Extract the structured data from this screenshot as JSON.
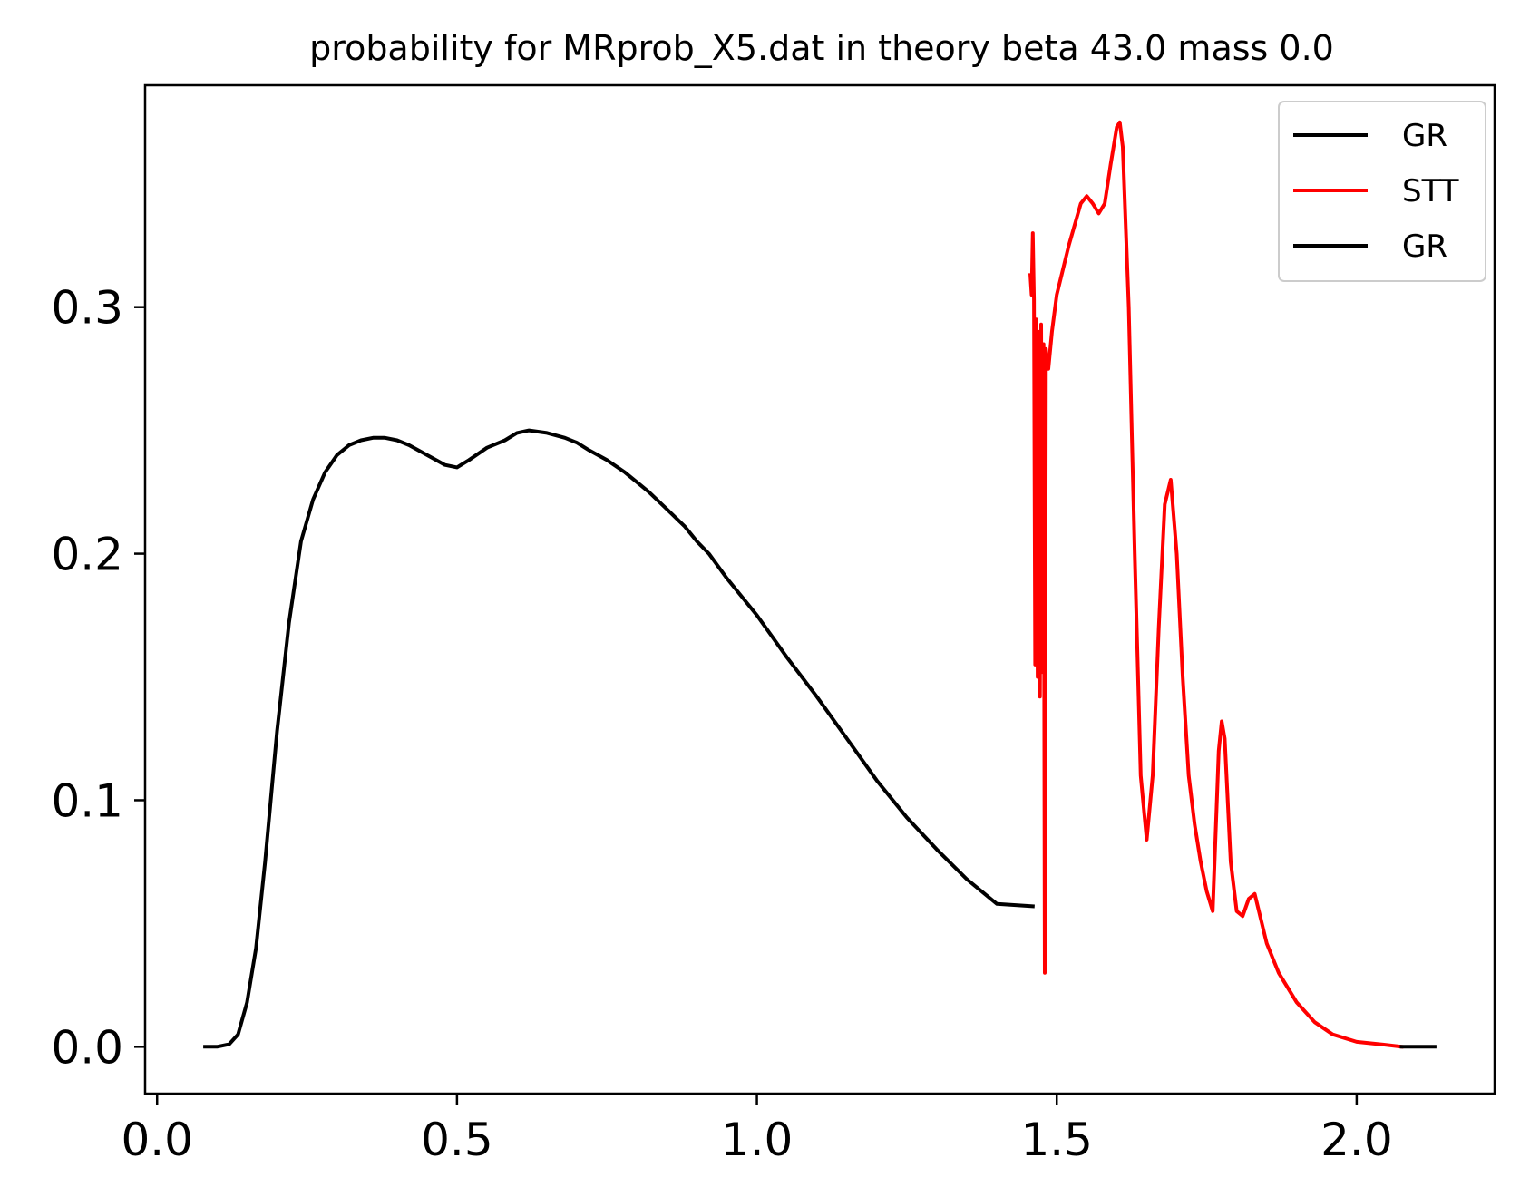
{
  "chart_data": {
    "type": "line",
    "title": "probability for MRprob_X5.dat in theory beta 43.0 mass 0.0",
    "xlabel": "",
    "ylabel": "",
    "xlim": [
      -0.02,
      2.23
    ],
    "ylim": [
      -0.019,
      0.39
    ],
    "xticks": [
      0.0,
      0.5,
      1.0,
      1.5,
      2.0
    ],
    "xtick_labels": [
      "0.0",
      "0.5",
      "1.0",
      "1.5",
      "2.0"
    ],
    "yticks": [
      0.0,
      0.1,
      0.2,
      0.3
    ],
    "ytick_labels": [
      "0.0",
      "0.1",
      "0.2",
      "0.3"
    ],
    "grid": false,
    "legend_position": "top-right",
    "series": [
      {
        "name": "GR",
        "color": "#000000",
        "x": [
          0.08,
          0.1,
          0.12,
          0.135,
          0.15,
          0.165,
          0.18,
          0.2,
          0.22,
          0.24,
          0.26,
          0.28,
          0.3,
          0.32,
          0.34,
          0.36,
          0.38,
          0.4,
          0.42,
          0.45,
          0.48,
          0.5,
          0.52,
          0.55,
          0.58,
          0.6,
          0.62,
          0.65,
          0.68,
          0.7,
          0.72,
          0.75,
          0.78,
          0.8,
          0.82,
          0.85,
          0.88,
          0.9,
          0.92,
          0.95,
          1.0,
          1.05,
          1.1,
          1.15,
          1.2,
          1.25,
          1.3,
          1.35,
          1.4,
          1.46
        ],
        "y": [
          0.0,
          0.0,
          0.001,
          0.005,
          0.018,
          0.04,
          0.075,
          0.128,
          0.172,
          0.205,
          0.222,
          0.233,
          0.24,
          0.244,
          0.246,
          0.247,
          0.247,
          0.246,
          0.244,
          0.24,
          0.236,
          0.235,
          0.238,
          0.243,
          0.246,
          0.249,
          0.25,
          0.249,
          0.247,
          0.245,
          0.242,
          0.238,
          0.233,
          0.229,
          0.225,
          0.218,
          0.211,
          0.205,
          0.2,
          0.19,
          0.175,
          0.158,
          0.142,
          0.125,
          0.108,
          0.093,
          0.08,
          0.068,
          0.058,
          0.057
        ]
      },
      {
        "name": "STT",
        "color": "#ff0000",
        "x": [
          1.456,
          1.458,
          1.46,
          1.462,
          1.464,
          1.466,
          1.468,
          1.47,
          1.472,
          1.474,
          1.476,
          1.478,
          1.48,
          1.482,
          1.484,
          1.486,
          1.488,
          1.49,
          1.492,
          1.5,
          1.52,
          1.54,
          1.55,
          1.56,
          1.57,
          1.58,
          1.59,
          1.6,
          1.605,
          1.61,
          1.62,
          1.63,
          1.64,
          1.65,
          1.66,
          1.67,
          1.68,
          1.69,
          1.7,
          1.71,
          1.72,
          1.73,
          1.74,
          1.75,
          1.76,
          1.77,
          1.775,
          1.78,
          1.79,
          1.8,
          1.81,
          1.82,
          1.83,
          1.84,
          1.85,
          1.87,
          1.9,
          1.93,
          1.96,
          2.0,
          2.04,
          2.075
        ],
        "y": [
          0.313,
          0.305,
          0.33,
          0.303,
          0.155,
          0.295,
          0.15,
          0.29,
          0.142,
          0.293,
          0.152,
          0.285,
          0.03,
          0.283,
          0.275,
          0.275,
          0.28,
          0.285,
          0.29,
          0.305,
          0.325,
          0.342,
          0.345,
          0.342,
          0.338,
          0.342,
          0.358,
          0.373,
          0.375,
          0.365,
          0.3,
          0.2,
          0.11,
          0.084,
          0.11,
          0.17,
          0.22,
          0.23,
          0.2,
          0.15,
          0.11,
          0.09,
          0.075,
          0.063,
          0.055,
          0.12,
          0.132,
          0.125,
          0.075,
          0.055,
          0.053,
          0.06,
          0.062,
          0.052,
          0.042,
          0.03,
          0.018,
          0.01,
          0.005,
          0.002,
          0.001,
          0.0
        ]
      },
      {
        "name": "GR",
        "color": "#000000",
        "x": [
          2.075,
          2.1,
          2.13
        ],
        "y": [
          0.0,
          0.0,
          0.0
        ]
      }
    ]
  }
}
